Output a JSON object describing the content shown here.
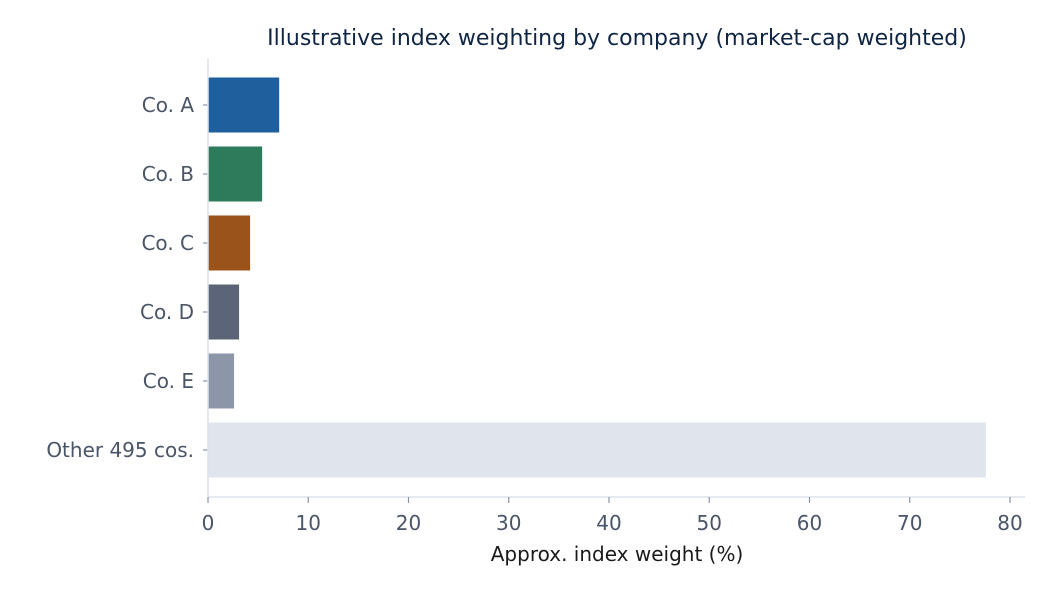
{
  "chart_data": {
    "type": "bar",
    "orientation": "horizontal",
    "title": "Illustrative index weighting by company (market-cap weighted)",
    "xlabel": "Approx. index weight (%)",
    "ylabel": "",
    "categories": [
      "Co. A",
      "Co. B",
      "Co. C",
      "Co. D",
      "Co. E",
      "Other 495 cos."
    ],
    "values": [
      7.1,
      5.4,
      4.2,
      3.1,
      2.6,
      77.6
    ],
    "colors": [
      "#1f5f9e",
      "#2e7b5c",
      "#9a531a",
      "#5b6577",
      "#8d96a8",
      "#e0e5ed"
    ],
    "xlim": [
      0,
      80
    ],
    "xticks": [
      "0",
      "10",
      "20",
      "30",
      "40",
      "50",
      "60",
      "70",
      "80"
    ],
    "grid": false,
    "legend": "none"
  }
}
